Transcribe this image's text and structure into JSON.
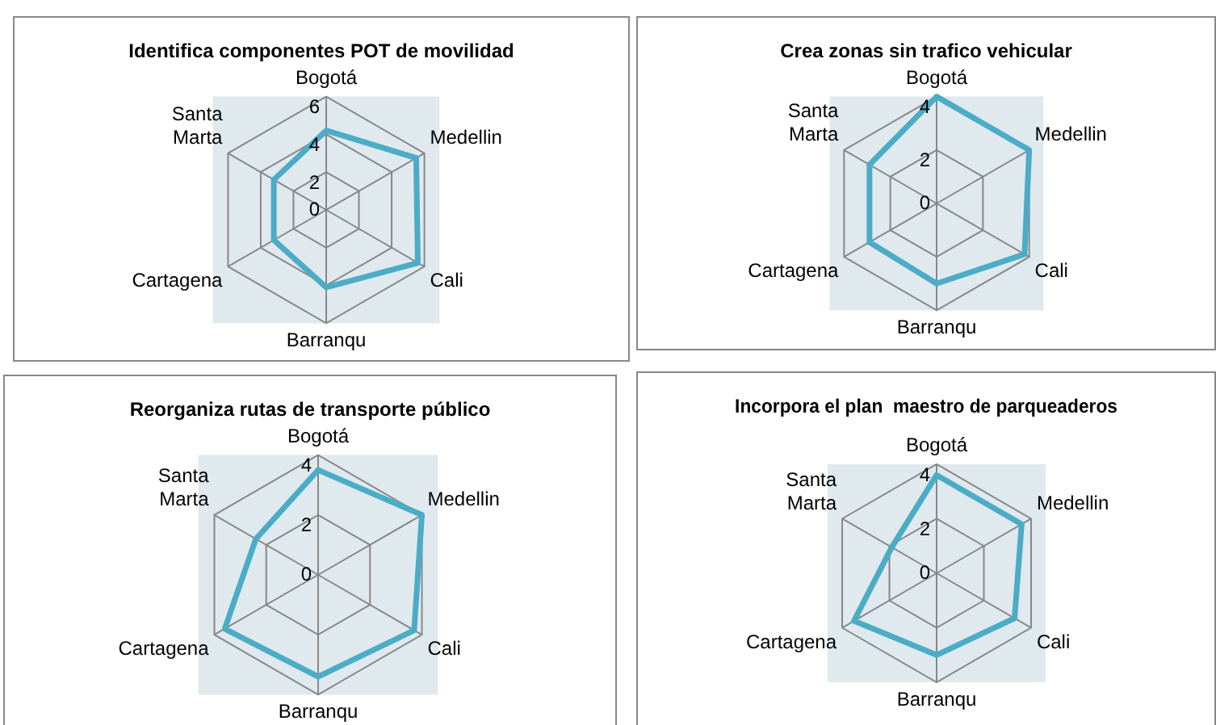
{
  "chart_data": [
    {
      "type": "radar",
      "title": "Identifica componentes POT de movilidad",
      "categories": [
        "Bogotá",
        "Medellin",
        "Cali",
        "Barranqu",
        "Cartagena",
        "Santa Marta"
      ],
      "series": [
        {
          "color": "#4bacc6",
          "values": [
            4.2,
            5.5,
            5.6,
            4.1,
            3.2,
            3.2
          ]
        }
      ],
      "ylim": [
        0,
        6
      ],
      "yticks": [
        0,
        2,
        4,
        6
      ],
      "grid": true,
      "legend": false,
      "marker": "none"
    },
    {
      "type": "radar",
      "title": "Crea zonas sin trafico vehicular",
      "categories": [
        "Bogotá",
        "Medellin",
        "Cali",
        "Barranqu",
        "Cartagena",
        "Santa Marta"
      ],
      "series": [
        {
          "color": "#4bacc6",
          "values": [
            4,
            4,
            3.8,
            3,
            2.9,
            2.9
          ]
        }
      ],
      "ylim": [
        0,
        4
      ],
      "yticks": [
        0,
        2,
        4
      ],
      "grid": true,
      "legend": false,
      "marker": "none"
    },
    {
      "type": "radar",
      "title": "Reorganiza rutas de transporte público",
      "categories": [
        "Bogotá",
        "Medellin",
        "Cali",
        "Barranqu",
        "Cartagena",
        "Santa Marta"
      ],
      "series": [
        {
          "color": "#4bacc6",
          "values": [
            3.5,
            4,
            3.7,
            3.4,
            3.6,
            2.4
          ]
        }
      ],
      "ylim": [
        0,
        4
      ],
      "yticks": [
        0,
        2,
        4
      ],
      "grid": true,
      "legend": false,
      "marker": "none"
    },
    {
      "type": "radar",
      "title": "Incorpora el plan  maestro de parqueaderos",
      "categories": [
        "Bogotá",
        "Medellin",
        "Cali",
        "Barranqu",
        "Cartagena",
        "Santa Marta"
      ],
      "series": [
        {
          "color": "#4bacc6",
          "values": [
            3.6,
            3.6,
            3.3,
            3,
            3.5,
            1.9
          ]
        }
      ],
      "ylim": [
        0,
        4
      ],
      "yticks": [
        0,
        2,
        4
      ],
      "grid": true,
      "legend": false,
      "marker": "none"
    }
  ]
}
